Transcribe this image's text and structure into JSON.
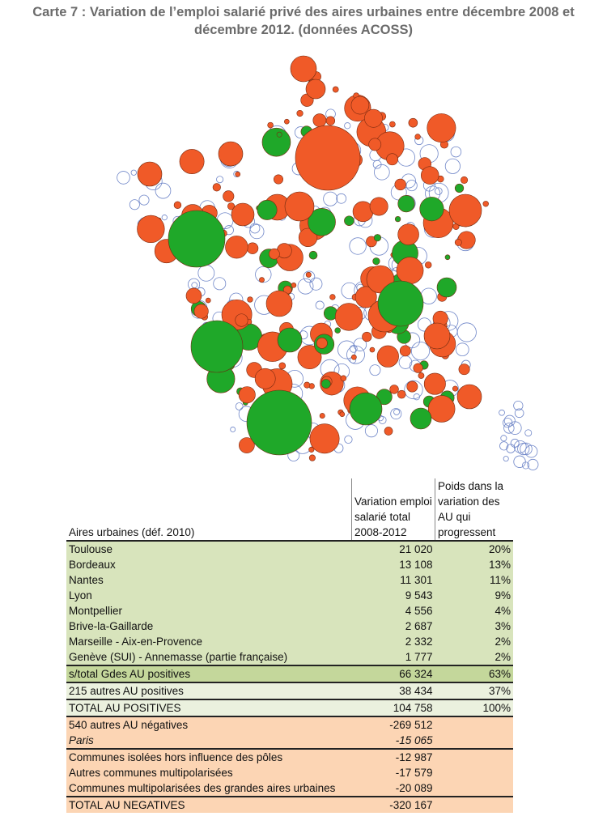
{
  "title": "Carte 7 : Variation de l’emploi salarié privé des aires urbaines entre décembre 2008 et décembre 2012. (données ACOSS)",
  "colors": {
    "negative": "#f05a28",
    "positive": "#1fa829",
    "outline": "#6f86c8"
  },
  "table": {
    "headers": [
      "Aires urbaines (déf. 2010)",
      "Variation emploi salarié total 2008-2012",
      "Poids dans la variation des AU qui progressent"
    ],
    "rows": [
      {
        "name": "Toulouse",
        "value": "21 020",
        "share": "20%"
      },
      {
        "name": "Bordeaux",
        "value": "13 108",
        "share": "13%"
      },
      {
        "name": "Nantes",
        "value": "11 301",
        "share": "11%"
      },
      {
        "name": "Lyon",
        "value": "9 543",
        "share": "9%"
      },
      {
        "name": "Montpellier",
        "value": "4 556",
        "share": "4%"
      },
      {
        "name": "Brive-la-Gaillarde",
        "value": "2 687",
        "share": "3%"
      },
      {
        "name": "Marseille - Aix-en-Provence",
        "value": "2 332",
        "share": "2%"
      },
      {
        "name": "Genève (SUI) - Annemasse (partie française)",
        "value": "1 777",
        "share": "2%"
      },
      {
        "name": "s/total Gdes AU positives",
        "value": "66 324",
        "share": "63%"
      },
      {
        "name": "215 autres AU positives",
        "value": "38 434",
        "share": "37%"
      },
      {
        "name": "TOTAL   AU   POSITIVES",
        "value": "104 758",
        "share": "100%"
      },
      {
        "name": "540 autres AU négatives",
        "value": "-269 512",
        "share": ""
      },
      {
        "name": "Paris",
        "value": "-15 065",
        "share": ""
      },
      {
        "name": "Communes isolées hors influence des pôles",
        "value": "-12 987",
        "share": ""
      },
      {
        "name": "Autres communes multipolarisées",
        "value": "-17 579",
        "share": ""
      },
      {
        "name": "Communes multipolarisées des grandes aires urbaines",
        "value": "-20 089",
        "share": ""
      },
      {
        "name": "TOTAL   AU   NEGATIVES",
        "value": "-320 167",
        "share": ""
      }
    ]
  }
}
